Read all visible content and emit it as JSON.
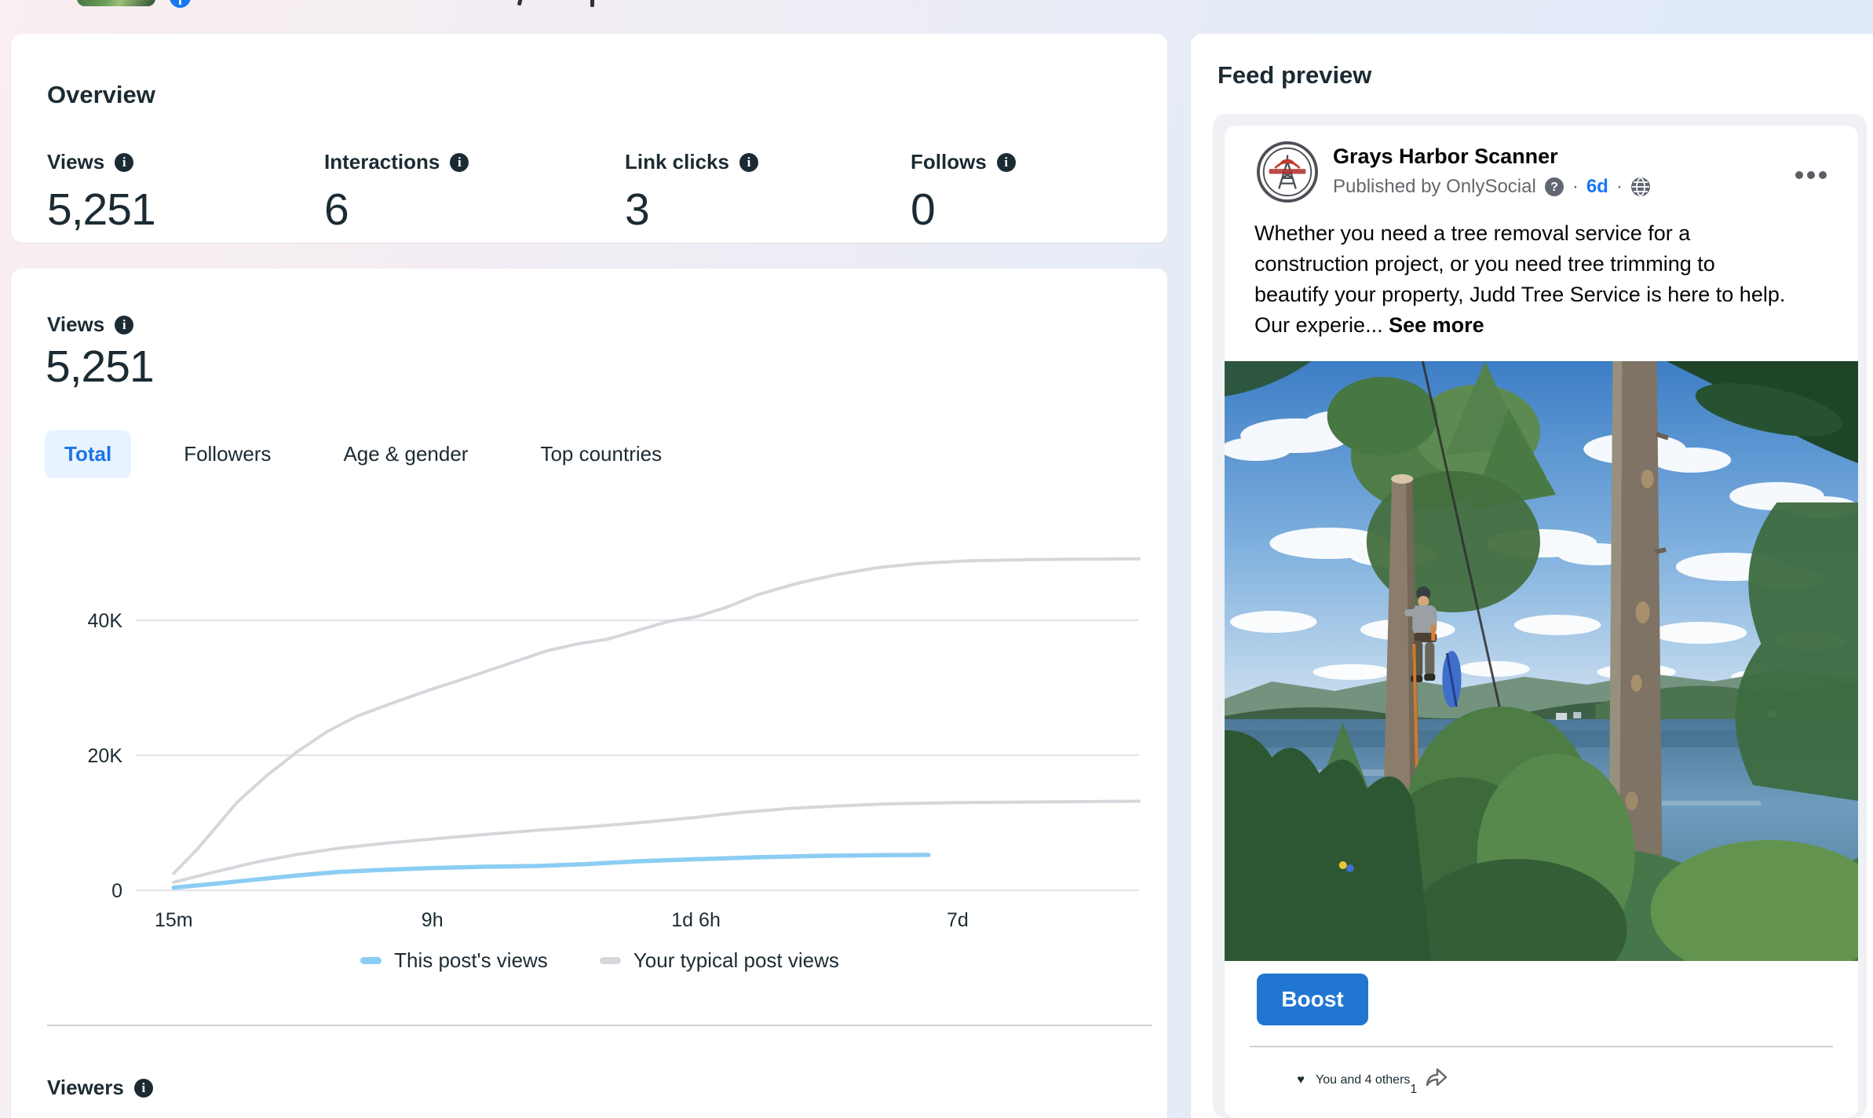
{
  "colors": {
    "accent_blue": "#1b74e4",
    "tab_active_bg": "#e7f3ff",
    "text_dark": "#1c2b33",
    "text_gray": "#65676b",
    "boost_bg": "#2176d2",
    "like_blue": "#1877f2",
    "love_red": "#e41e3f",
    "line_blue": "#8ccdf3",
    "line_gray": "#d4d7db"
  },
  "icons": {
    "info": "info-circle-filled",
    "question": "question-circle-filled",
    "globe": "globe-audience",
    "more": "three-dots-menu",
    "share": "share-arrow",
    "like": "thumbs-up-reaction",
    "love": "heart-reaction",
    "facebook": "facebook-f-badge",
    "thumbnail": "post-thumbnail-image"
  },
  "overview": {
    "title": "Overview",
    "metrics": [
      {
        "label": "Views",
        "value": "5,251"
      },
      {
        "label": "Interactions",
        "value": "6"
      },
      {
        "label": "Link clicks",
        "value": "3"
      },
      {
        "label": "Follows",
        "value": "0"
      }
    ]
  },
  "views_section": {
    "title": "Views",
    "value": "5,251",
    "tabs": [
      {
        "label": "Total",
        "active": true
      },
      {
        "label": "Followers",
        "active": false
      },
      {
        "label": "Age & gender",
        "active": false
      },
      {
        "label": "Top countries",
        "active": false
      }
    ],
    "legend": [
      {
        "label": "This post's views",
        "color": "#8ccdf3"
      },
      {
        "label": "Your typical post views",
        "color": "#d4d7db"
      }
    ]
  },
  "chart_data": {
    "type": "line",
    "title": "",
    "xlabel": "",
    "ylabel": "",
    "ylim": [
      0,
      52
    ],
    "grid": "horizontal",
    "legend_position": "bottom-center",
    "y_ticks": [
      {
        "label": "0",
        "value": 0
      },
      {
        "label": "20K",
        "value": 20
      },
      {
        "label": "40K",
        "value": 40
      }
    ],
    "x_ticks": [
      {
        "label": "15m",
        "f": 0.037
      },
      {
        "label": "9h",
        "f": 0.295
      },
      {
        "label": "1d 6h",
        "f": 0.558
      },
      {
        "label": "7d",
        "f": 0.819
      }
    ],
    "units": "views (thousands)",
    "series": [
      {
        "name": "Your typical post views (upper)",
        "color": "#d4d7db",
        "width": 4,
        "points": [
          [
            0.037,
            2.5
          ],
          [
            0.06,
            6
          ],
          [
            0.08,
            9.5
          ],
          [
            0.1,
            13
          ],
          [
            0.13,
            17
          ],
          [
            0.16,
            20.5
          ],
          [
            0.19,
            23.5
          ],
          [
            0.22,
            25.8
          ],
          [
            0.26,
            28
          ],
          [
            0.295,
            29.8
          ],
          [
            0.33,
            31.5
          ],
          [
            0.37,
            33.5
          ],
          [
            0.41,
            35.5
          ],
          [
            0.44,
            36.5
          ],
          [
            0.47,
            37.2
          ],
          [
            0.5,
            38.5
          ],
          [
            0.53,
            39.8
          ],
          [
            0.558,
            40.5
          ],
          [
            0.59,
            42
          ],
          [
            0.62,
            43.8
          ],
          [
            0.66,
            45.5
          ],
          [
            0.7,
            46.8
          ],
          [
            0.74,
            47.8
          ],
          [
            0.78,
            48.4
          ],
          [
            0.83,
            48.8
          ],
          [
            0.9,
            49.0
          ],
          [
            1.0,
            49.1
          ]
        ]
      },
      {
        "name": "Your typical post views (lower)",
        "color": "#d4d7db",
        "width": 4,
        "points": [
          [
            0.037,
            1.2
          ],
          [
            0.08,
            2.8
          ],
          [
            0.12,
            4.2
          ],
          [
            0.16,
            5.3
          ],
          [
            0.2,
            6.2
          ],
          [
            0.25,
            7.0
          ],
          [
            0.295,
            7.6
          ],
          [
            0.35,
            8.3
          ],
          [
            0.4,
            8.9
          ],
          [
            0.45,
            9.4
          ],
          [
            0.5,
            10.0
          ],
          [
            0.558,
            10.8
          ],
          [
            0.6,
            11.5
          ],
          [
            0.65,
            12.1
          ],
          [
            0.7,
            12.5
          ],
          [
            0.75,
            12.8
          ],
          [
            0.82,
            13.0
          ],
          [
            1.0,
            13.2
          ]
        ]
      },
      {
        "name": "This post's views",
        "color": "#8ccdf3",
        "width": 5.5,
        "points": [
          [
            0.037,
            0.4
          ],
          [
            0.08,
            1.0
          ],
          [
            0.12,
            1.6
          ],
          [
            0.16,
            2.2
          ],
          [
            0.2,
            2.7
          ],
          [
            0.24,
            3.0
          ],
          [
            0.295,
            3.3
          ],
          [
            0.35,
            3.5
          ],
          [
            0.4,
            3.6
          ],
          [
            0.45,
            3.9
          ],
          [
            0.5,
            4.3
          ],
          [
            0.558,
            4.6
          ],
          [
            0.62,
            4.9
          ],
          [
            0.68,
            5.1
          ],
          [
            0.74,
            5.2
          ],
          [
            0.79,
            5.25
          ]
        ]
      }
    ]
  },
  "viewers_section": {
    "title": "Viewers"
  },
  "feed_preview": {
    "title": "Feed preview",
    "post": {
      "author": "Grays Harbor Scanner",
      "published_by": "Published by OnlySocial",
      "separator": "·",
      "age": "6d",
      "body_lines": [
        "Whether you need a tree removal service for a",
        "construction project, or you need tree trimming to",
        "beautify your property, Judd Tree Service is here to help.",
        "Our experie..."
      ],
      "see_more": "See more",
      "boost_label": "Boost",
      "reactions_summary": "You and 4 others",
      "share_count": "1"
    }
  }
}
